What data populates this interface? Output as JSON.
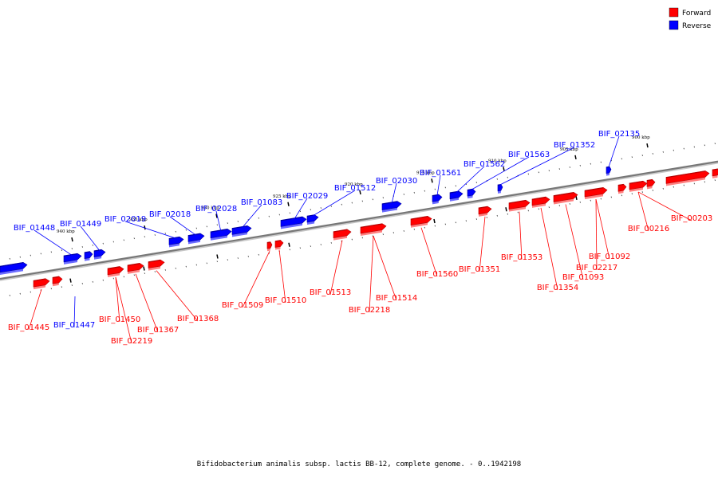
{
  "legend": {
    "items": [
      {
        "label": "Forward",
        "color": "#ff0000"
      },
      {
        "label": "Reverse",
        "color": "#0000ff"
      }
    ]
  },
  "footer": {
    "caption": "Bifidobacterium animalis subsp. lactis BB-12, complete genome. - 0..1942198"
  },
  "axis": {
    "tick_labels": [
      "940 kbp",
      "935 kbp",
      "930 kbp",
      "925 kbp",
      "920 kbp",
      "915 kbp",
      "910 kbp",
      "905 kbp",
      "900 kbp"
    ]
  },
  "genes": {
    "reverse": [
      "BIF_01448",
      "BIF_01449",
      "BIF_02019",
      "BIF_02018",
      "BIF_02028",
      "BIF_01083",
      "BIF_02029",
      "BIF_01512",
      "BIF_02030",
      "BIF_01561",
      "BIF_01562",
      "BIF_01563",
      "BIF_01352",
      "BIF_02135",
      "BIF_01447"
    ],
    "forward": [
      "BIF_01445",
      "BIF_01450",
      "BIF_02219",
      "BIF_01367",
      "BIF_01368",
      "BIF_01509",
      "BIF_01510",
      "BIF_01513",
      "BIF_02218",
      "BIF_01514",
      "BIF_01560",
      "BIF_01351",
      "BIF_01353",
      "BIF_01354",
      "BIF_01093",
      "BIF_02217",
      "BIF_01092",
      "BIF_00216",
      "BIF_00203"
    ]
  }
}
